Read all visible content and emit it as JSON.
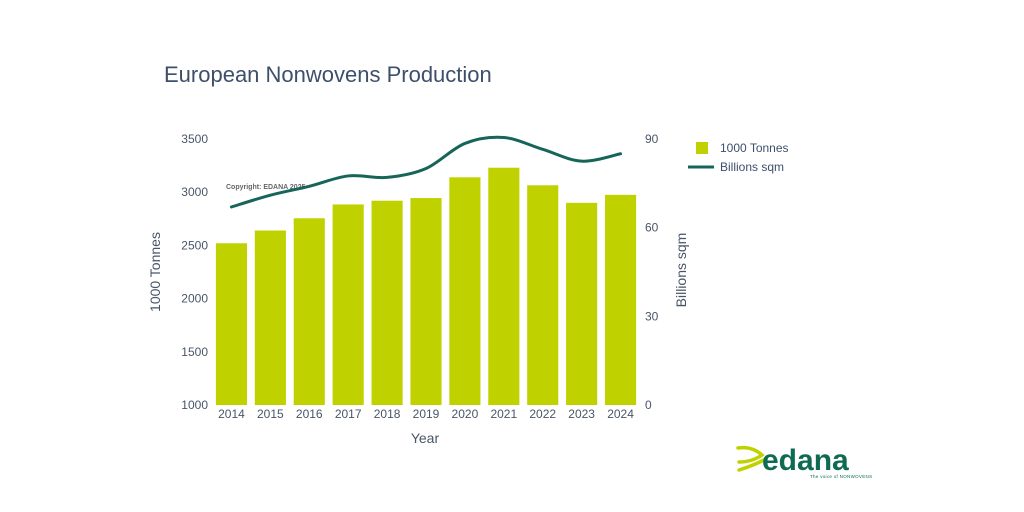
{
  "chart_data": {
    "type": "bar",
    "title": "European Nonwovens Production",
    "xlabel": "Year",
    "ylabel": "1000 Tonnes",
    "y2label": "Billions sqm",
    "categories": [
      "2014",
      "2015",
      "2016",
      "2017",
      "2018",
      "2019",
      "2020",
      "2021",
      "2022",
      "2023",
      "2024"
    ],
    "ylim": [
      1000,
      3500
    ],
    "yticks": [
      1000,
      1500,
      2000,
      2500,
      3000,
      3500
    ],
    "y2lim": [
      0,
      90
    ],
    "y2ticks": [
      0,
      30,
      60,
      90
    ],
    "series": [
      {
        "name": "1000 Tonnes",
        "type": "bar",
        "axis": "left",
        "color": "#bfd200",
        "values": [
          2520,
          2640,
          2755,
          2885,
          2920,
          2945,
          3140,
          3230,
          3065,
          2900,
          2975
        ]
      },
      {
        "name": "Billions sqm",
        "type": "line",
        "axis": "right",
        "color": "#17645a",
        "values": [
          67,
          71,
          74,
          77.5,
          77,
          80,
          88.5,
          90.5,
          86.5,
          82.5,
          85
        ]
      }
    ],
    "legend": "top-right",
    "grid": false,
    "annotation": "Copyright: EDANA 2025"
  },
  "logo": {
    "word": "edana",
    "tagline": "The voice of NONWOVENS",
    "colors": [
      "#bfd200",
      "#0e6b52"
    ]
  }
}
